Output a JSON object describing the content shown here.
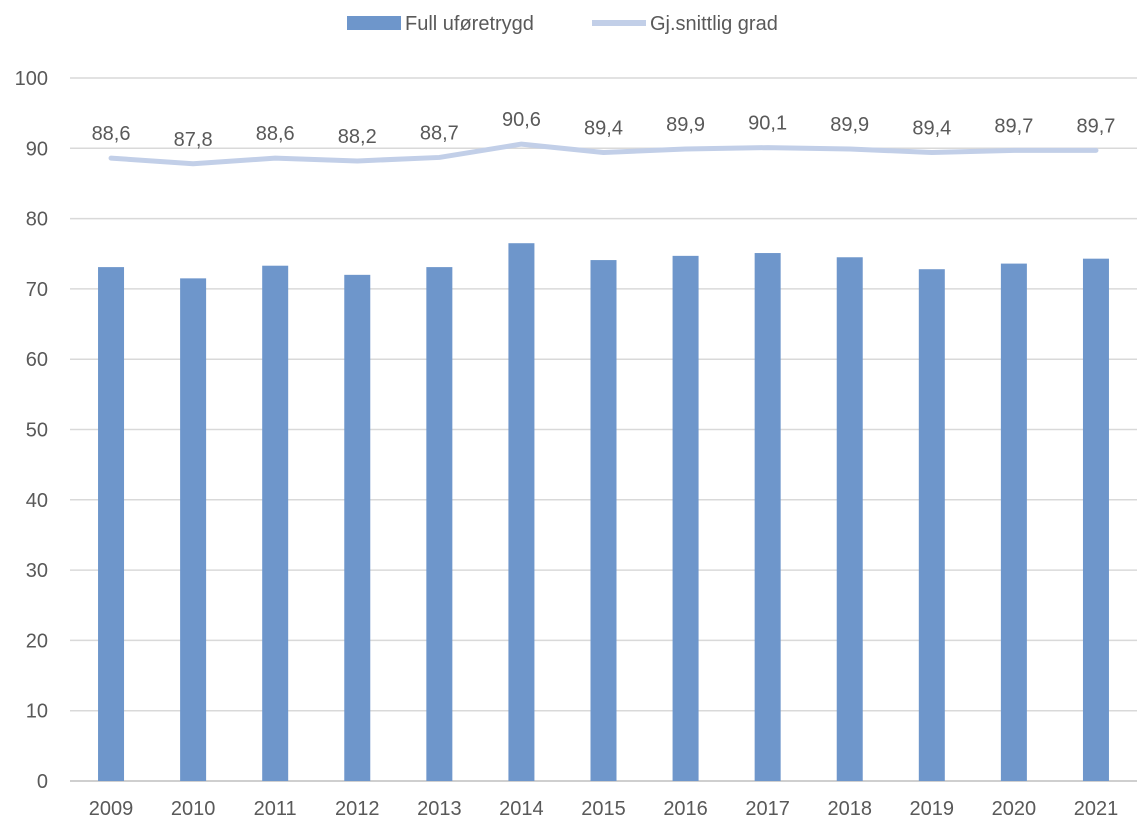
{
  "chart_data": {
    "type": "bar",
    "categories": [
      "2009",
      "2010",
      "2011",
      "2012",
      "2013",
      "2014",
      "2015",
      "2016",
      "2017",
      "2018",
      "2019",
      "2020",
      "2021"
    ],
    "series": [
      {
        "name": "Full uføretrygd",
        "type": "bar",
        "color": "#6e96cb",
        "values": [
          73.1,
          71.5,
          73.3,
          72.0,
          73.1,
          76.5,
          74.1,
          74.7,
          75.1,
          74.5,
          72.8,
          73.6,
          74.3
        ]
      },
      {
        "name": "Gj.snittlig grad",
        "type": "line",
        "color": "#c2cfe8",
        "values": [
          88.6,
          87.8,
          88.6,
          88.2,
          88.7,
          90.6,
          89.4,
          89.9,
          90.1,
          89.9,
          89.4,
          89.7,
          89.7
        ],
        "data_labels": [
          "88,6",
          "87,8",
          "88,6",
          "88,2",
          "88,7",
          "90,6",
          "89,4",
          "89,9",
          "90,1",
          "89,9",
          "89,4",
          "89,7",
          "89,7"
        ]
      }
    ],
    "yticks": [
      "0",
      "10",
      "20",
      "30",
      "40",
      "50",
      "60",
      "70",
      "80",
      "90",
      "100"
    ],
    "ylim": [
      0,
      100
    ],
    "grid": true,
    "legend_position": "top-center"
  }
}
